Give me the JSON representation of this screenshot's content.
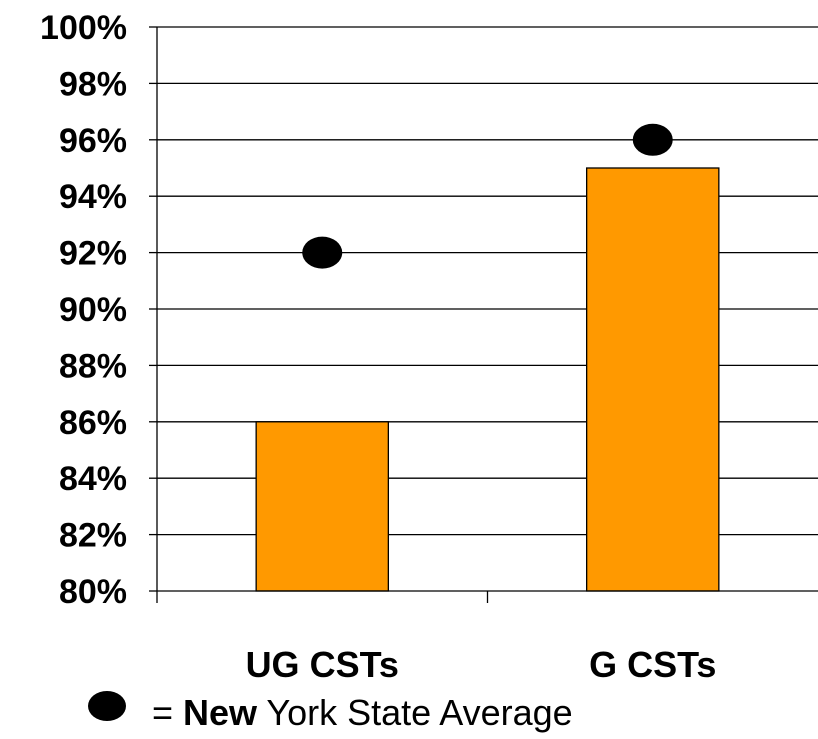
{
  "chart_data": {
    "type": "bar",
    "categories": [
      "UG CSTs",
      "G CSTs"
    ],
    "series": [
      {
        "values": [
          86,
          95
        ],
        "color": "#FF9900"
      },
      {
        "name": "New York State Average",
        "type": "scatter",
        "values": [
          92,
          96
        ],
        "color": "#000000",
        "marker": "filled-ellipse"
      }
    ],
    "y_ticks": [
      "80%",
      "82%",
      "84%",
      "86%",
      "88%",
      "90%",
      "92%",
      "94%",
      "96%",
      "98%",
      "100%"
    ],
    "ylim": [
      80,
      100
    ],
    "grid": true,
    "legend_placement": "bottom"
  },
  "legend": {
    "prefix": "= ",
    "bold": "New",
    "rest": " York State Average"
  }
}
